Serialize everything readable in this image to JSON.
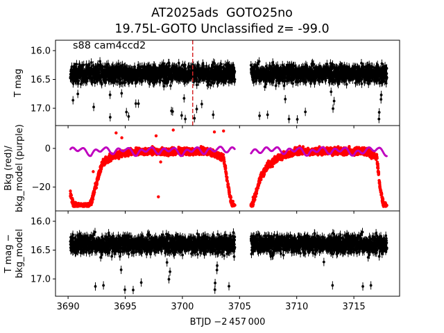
{
  "title": {
    "line1": "AT2025ads  GOTO25no",
    "line2": "19.75L-GOTO Unclassified z= -99.0"
  },
  "xlabel": "BTJD −2 457 000",
  "chart_data": [
    {
      "type": "scatter",
      "panel": "top",
      "ylabel": "T mag",
      "annotation": "s88 cam4ccd2",
      "y_inverted": true,
      "xlim": [
        3688.9,
        3719.0
      ],
      "ylim": [
        17.3,
        15.82
      ],
      "yticks": [
        "16.0",
        "16.5",
        "17.0"
      ],
      "vline": {
        "x": 3700.9,
        "color": "#d62728",
        "style": "dashed"
      },
      "series": [
        {
          "color": "#000000",
          "segments": [
            [
              3690.2,
              3704.6
            ],
            [
              3706.0,
              3717.9
            ]
          ],
          "center": 16.4,
          "spread": 0.16,
          "outliers_to": 17.2
        }
      ]
    },
    {
      "type": "scatter",
      "panel": "middle",
      "ylabel": "Bkg (red)/\nbkg_model (purple)",
      "xlim": [
        3688.9,
        3719.0
      ],
      "ylim": [
        -32.3,
        11.8
      ],
      "yticks": [
        "0",
        "−20"
      ],
      "series": [
        {
          "name": "Bkg",
          "color": "#ff0000",
          "x": [
            3690.2,
            3690.5,
            3691.0,
            3691.5,
            3692.0,
            3692.5,
            3693.0,
            3694.0,
            3696.0,
            3698.0,
            3700.0,
            3702.0,
            3703.6,
            3704.0,
            3704.3,
            3704.6,
            3705.0,
            3706.0,
            3706.3,
            3706.8,
            3707.5,
            3708.5,
            3710.0,
            3712.0,
            3714.0,
            3716.0,
            3717.0,
            3717.3,
            3717.6,
            3717.9
          ],
          "y": [
            -22,
            -28,
            -29,
            -29,
            -27,
            -16,
            -6,
            -2,
            0,
            0,
            0,
            0,
            -3,
            -18,
            -27,
            -29,
            -29,
            -29,
            -24,
            -14,
            -7,
            -3,
            0,
            0,
            0,
            0,
            -3,
            -19,
            -28,
            -29
          ]
        },
        {
          "name": "bkg_model",
          "color": "#bf00bf",
          "x": [
            3690.2,
            3691.0,
            3692.0,
            3693.0,
            3694.0,
            3695.0,
            3696.0,
            3697.0,
            3698.0,
            3699.0,
            3700.0,
            3701.0,
            3702.0,
            3703.0,
            3704.0,
            3705.0,
            3706.0,
            3707.0,
            3708.0,
            3709.0,
            3710.0,
            3711.0,
            3712.0,
            3713.0,
            3714.0,
            3715.0,
            3716.0,
            3717.0,
            3717.9
          ],
          "y": [
            -1,
            0,
            -3,
            0,
            -2,
            0,
            -3,
            0,
            -2,
            0,
            -3,
            0,
            -2,
            0,
            -1,
            0,
            -2,
            -1,
            0,
            -2,
            0,
            -3,
            0,
            -2,
            0,
            -3,
            -1,
            0,
            -3
          ]
        }
      ]
    },
    {
      "type": "scatter",
      "panel": "bottom",
      "ylabel": "T mag −\nbkg_model",
      "y_inverted": true,
      "xlim": [
        3688.9,
        3719.0
      ],
      "ylim": [
        17.3,
        15.82
      ],
      "yticks": [
        "16.0",
        "16.5",
        "17.0"
      ],
      "xticks": [
        3690,
        3695,
        3700,
        3705,
        3710,
        3715
      ],
      "series": [
        {
          "color": "#000000",
          "segments": [
            [
              3690.2,
              3704.6
            ],
            [
              3706.0,
              3717.9
            ]
          ],
          "center": 16.4,
          "spread": 0.16,
          "outliers_to": 17.2
        }
      ]
    }
  ]
}
